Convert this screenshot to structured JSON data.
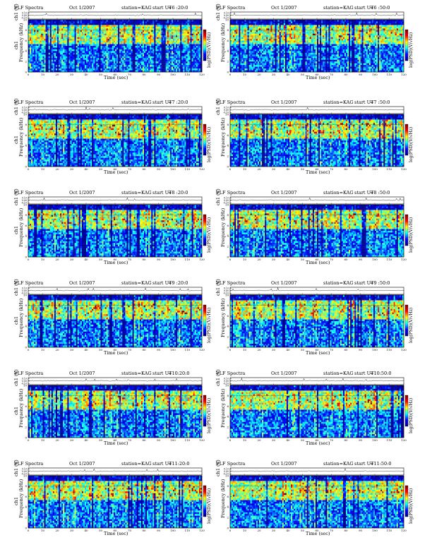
{
  "chart_data": [
    {
      "type": "heatmap",
      "title": "VLF Spectra",
      "date": "Oct 1/2007",
      "station": "station=KAG",
      "start_label": "start UT",
      "start_time": "=6 :20:0",
      "top_ylabel": "ch1 (V)",
      "top_yticks": [
        "0.10",
        "0.00",
        "-0.10"
      ],
      "xlabel": "Time (sec)",
      "xticks": [
        "0",
        "10",
        "20",
        "30",
        "40",
        "50",
        "60",
        "70",
        "80",
        "90",
        "100",
        "110",
        "120"
      ],
      "xlim": [
        0,
        120
      ],
      "ylabel": "Frequency (kHz)",
      "channel_label": "ch1",
      "yticks": [
        "0",
        "2",
        "4",
        "6",
        "8",
        "10"
      ],
      "ylim": [
        0,
        10
      ],
      "colorbar_label": "log(PSD)(V/√Hz)",
      "colorscale": [
        "#00008f",
        "#0000ff",
        "#00ffff",
        "#ffff00",
        "#ff0000",
        "#800000"
      ]
    },
    {
      "type": "heatmap",
      "title": "VLF Spectra",
      "date": "Oct 1/2007",
      "station": "station=KAG",
      "start_label": "start UT",
      "start_time": "=6 :50:0",
      "top_ylabel": "ch1 (V)",
      "top_yticks": [
        "0.10",
        "0.00",
        "-0.10"
      ],
      "xlabel": "Time (sec)",
      "xticks": [
        "0",
        "10",
        "20",
        "30",
        "40",
        "50",
        "60",
        "70",
        "80",
        "90",
        "100",
        "110",
        "120"
      ],
      "xlim": [
        0,
        120
      ],
      "ylabel": "Frequency (kHz)",
      "channel_label": "",
      "yticks": [
        "0",
        "2",
        "4",
        "6",
        "8",
        "10"
      ],
      "ylim": [
        0,
        10
      ],
      "colorbar_label": "log(PSD)(V/√Hz)",
      "colorscale": [
        "#00008f",
        "#0000ff",
        "#00ffff",
        "#ffff00",
        "#ff0000",
        "#800000"
      ]
    },
    {
      "type": "heatmap",
      "title": "VLF Spectra",
      "date": "Oct 1/2007",
      "station": "station=KAG",
      "start_label": "start UT",
      "start_time": "=7 :20:0",
      "top_ylabel": "ch1 (V)",
      "top_yticks": [
        "0.10",
        "0.00",
        "-0.10"
      ],
      "xlabel": "Time (sec)",
      "xticks": [
        "0",
        "10",
        "20",
        "30",
        "40",
        "50",
        "60",
        "70",
        "80",
        "90",
        "100",
        "110",
        "120"
      ],
      "xlim": [
        0,
        120
      ],
      "ylabel": "Frequency (kHz)",
      "channel_label": "ch1",
      "yticks": [
        "0",
        "2",
        "4",
        "6",
        "8",
        "10"
      ],
      "ylim": [
        0,
        10
      ],
      "colorbar_label": "log(PSD)(V/√Hz)",
      "colorscale": [
        "#00008f",
        "#0000ff",
        "#00ffff",
        "#ffff00",
        "#ff0000",
        "#800000"
      ]
    },
    {
      "type": "heatmap",
      "title": "VLF Spectra",
      "date": "Oct 1/2007",
      "station": "station=KAG",
      "start_label": "start UT",
      "start_time": "=7 :50:0",
      "top_ylabel": "ch1 (V)",
      "top_yticks": [
        "0.10",
        "0.00",
        "-0.10"
      ],
      "xlabel": "Time (sec)",
      "xticks": [
        "0",
        "10",
        "20",
        "30",
        "40",
        "50",
        "60",
        "70",
        "80",
        "90",
        "100",
        "110",
        "120"
      ],
      "xlim": [
        0,
        120
      ],
      "ylabel": "Frequency (kHz)",
      "channel_label": "",
      "yticks": [
        "0",
        "2",
        "4",
        "6",
        "8",
        "10"
      ],
      "ylim": [
        0,
        10
      ],
      "colorbar_label": "log(PSD)(V/√Hz)",
      "colorscale": [
        "#00008f",
        "#0000ff",
        "#00ffff",
        "#ffff00",
        "#ff0000",
        "#800000"
      ]
    },
    {
      "type": "heatmap",
      "title": "VLF Spectra",
      "date": "Oct 1/2007",
      "station": "station=KAG",
      "start_label": "start UT",
      "start_time": "=8 :20:0",
      "top_ylabel": "ch1 (V)",
      "top_yticks": [
        "0.10",
        "0.00",
        "-0.10"
      ],
      "xlabel": "Time (sec)",
      "xticks": [
        "0",
        "10",
        "20",
        "30",
        "40",
        "50",
        "60",
        "70",
        "80",
        "90",
        "100",
        "110",
        "120"
      ],
      "xlim": [
        0,
        120
      ],
      "ylabel": "Frequency (kHz)",
      "channel_label": "ch1",
      "yticks": [
        "0",
        "2",
        "4",
        "6",
        "8",
        "10"
      ],
      "ylim": [
        0,
        10
      ],
      "colorbar_label": "log(PSD)(V/√Hz)",
      "colorscale": [
        "#00008f",
        "#0000ff",
        "#00ffff",
        "#ffff00",
        "#ff0000",
        "#800000"
      ]
    },
    {
      "type": "heatmap",
      "title": "VLF Spectra",
      "date": "Oct 1/2007",
      "station": "station=KAG",
      "start_label": "start UT",
      "start_time": "=8 :50:0",
      "top_ylabel": "ch1 (V)",
      "top_yticks": [
        "0.10",
        "0.00",
        "-0.10"
      ],
      "xlabel": "Time (sec)",
      "xticks": [
        "0",
        "10",
        "20",
        "30",
        "40",
        "50",
        "60",
        "70",
        "80",
        "90",
        "100",
        "110",
        "120"
      ],
      "xlim": [
        0,
        120
      ],
      "ylabel": "Frequency (kHz)",
      "channel_label": "",
      "yticks": [
        "0",
        "2",
        "4",
        "6",
        "8",
        "10"
      ],
      "ylim": [
        0,
        10
      ],
      "colorbar_label": "log(PSD)(V/√Hz)",
      "colorscale": [
        "#00008f",
        "#0000ff",
        "#00ffff",
        "#ffff00",
        "#ff0000",
        "#800000"
      ]
    },
    {
      "type": "heatmap",
      "title": "VLF Spectra",
      "date": "Oct 1/2007",
      "station": "station=KAG",
      "start_label": "start UT",
      "start_time": "=9 :20:0",
      "top_ylabel": "ch1 (V)",
      "top_yticks": [
        "0.10",
        "0.00",
        "-0.10"
      ],
      "xlabel": "Time (sec)",
      "xticks": [
        "0",
        "10",
        "20",
        "30",
        "40",
        "50",
        "60",
        "70",
        "80",
        "90",
        "100",
        "110",
        "120"
      ],
      "xlim": [
        0,
        120
      ],
      "ylabel": "Frequency (kHz)",
      "channel_label": "ch1",
      "yticks": [
        "0",
        "2",
        "4",
        "6",
        "8",
        "10"
      ],
      "ylim": [
        0,
        10
      ],
      "colorbar_label": "log(PSD)(V/√Hz)",
      "colorscale": [
        "#00008f",
        "#0000ff",
        "#00ffff",
        "#ffff00",
        "#ff0000",
        "#800000"
      ]
    },
    {
      "type": "heatmap",
      "title": "VLF Spectra",
      "date": "Oct 1/2007",
      "station": "station=KAG",
      "start_label": "start UT",
      "start_time": "=9 :50:0",
      "top_ylabel": "ch1 (V)",
      "top_yticks": [
        "0.10",
        "0.00",
        "-0.10"
      ],
      "xlabel": "Time (sec)",
      "xticks": [
        "0",
        "10",
        "20",
        "30",
        "40",
        "50",
        "60",
        "70",
        "80",
        "90",
        "100",
        "110",
        "120"
      ],
      "xlim": [
        0,
        120
      ],
      "ylabel": "Frequency (kHz)",
      "channel_label": "",
      "yticks": [
        "0",
        "2",
        "4",
        "6",
        "8",
        "10"
      ],
      "ylim": [
        0,
        10
      ],
      "colorbar_label": "log(PSD)(V/√Hz)",
      "colorscale": [
        "#00008f",
        "#0000ff",
        "#00ffff",
        "#ffff00",
        "#ff0000",
        "#800000"
      ]
    },
    {
      "type": "heatmap",
      "title": "VLF Spectra",
      "date": "Oct 1/2007",
      "station": "station=KAG",
      "start_label": "start UT",
      "start_time": "=10:20:0",
      "top_ylabel": "ch1 (V)",
      "top_yticks": [
        "0.10",
        "0.00",
        "-0.10"
      ],
      "xlabel": "Time (sec)",
      "xticks": [
        "0",
        "10",
        "20",
        "30",
        "40",
        "50",
        "60",
        "70",
        "80",
        "90",
        "100",
        "110",
        "120"
      ],
      "xlim": [
        0,
        120
      ],
      "ylabel": "Frequency (kHz)",
      "channel_label": "ch1",
      "yticks": [
        "0",
        "2",
        "4",
        "6",
        "8",
        "10"
      ],
      "ylim": [
        0,
        10
      ],
      "colorbar_label": "log(PSD)(V/√Hz)",
      "colorscale": [
        "#00008f",
        "#0000ff",
        "#00ffff",
        "#ffff00",
        "#ff0000",
        "#800000"
      ]
    },
    {
      "type": "heatmap",
      "title": "VLF Spectra",
      "date": "Oct 1/2007",
      "station": "station=KAG",
      "start_label": "start UT",
      "start_time": "=10:50:0",
      "top_ylabel": "ch1 (V)",
      "top_yticks": [
        "0.10",
        "0.00",
        "-0.10"
      ],
      "xlabel": "Time (sec)",
      "xticks": [
        "0",
        "10",
        "20",
        "30",
        "40",
        "50",
        "60",
        "70",
        "80",
        "90",
        "100",
        "110",
        "120"
      ],
      "xlim": [
        0,
        120
      ],
      "ylabel": "Frequency (kHz)",
      "channel_label": "",
      "yticks": [
        "0",
        "2",
        "4",
        "6",
        "8",
        "10"
      ],
      "ylim": [
        0,
        10
      ],
      "colorbar_label": "log(PSD)(V/√Hz)",
      "colorscale": [
        "#00008f",
        "#0000ff",
        "#00ffff",
        "#ffff00",
        "#ff0000",
        "#800000"
      ]
    },
    {
      "type": "heatmap",
      "title": "VLF Spectra",
      "date": "Oct 1/2007",
      "station": "station=KAG",
      "start_label": "start UT",
      "start_time": "=11:20:0",
      "top_ylabel": "ch1 (V)",
      "top_yticks": [
        "0.10",
        "0.00",
        "-0.10"
      ],
      "xlabel": "Time (sec)",
      "xticks": [
        "0",
        "10",
        "20",
        "30",
        "40",
        "50",
        "60",
        "70",
        "80",
        "90",
        "100",
        "110",
        "120"
      ],
      "xlim": [
        0,
        120
      ],
      "ylabel": "Frequency (kHz)",
      "channel_label": "ch1",
      "yticks": [
        "0",
        "2",
        "4",
        "6",
        "8",
        "10"
      ],
      "ylim": [
        0,
        10
      ],
      "colorbar_label": "log(PSD)(V/√Hz)",
      "colorscale": [
        "#00008f",
        "#0000ff",
        "#00ffff",
        "#ffff00",
        "#ff0000",
        "#800000"
      ]
    },
    {
      "type": "heatmap",
      "title": "VLF Spectra",
      "date": "Oct 1/2007",
      "station": "station=KAG",
      "start_label": "start UT",
      "start_time": "=11:50:0",
      "top_ylabel": "ch1 (V)",
      "top_yticks": [
        "0.10",
        "0.00",
        "-0.10"
      ],
      "xlabel": "Time (sec)",
      "xticks": [
        "0",
        "10",
        "20",
        "30",
        "40",
        "50",
        "60",
        "70",
        "80",
        "90",
        "100",
        "110",
        "120"
      ],
      "xlim": [
        0,
        120
      ],
      "ylabel": "Frequency (kHz)",
      "channel_label": "",
      "yticks": [
        "0",
        "2",
        "4",
        "6",
        "8",
        "10"
      ],
      "ylim": [
        0,
        10
      ],
      "colorbar_label": "log(PSD)(V/√Hz)",
      "colorscale": [
        "#00008f",
        "#0000ff",
        "#00ffff",
        "#ffff00",
        "#ff0000",
        "#800000"
      ]
    }
  ]
}
